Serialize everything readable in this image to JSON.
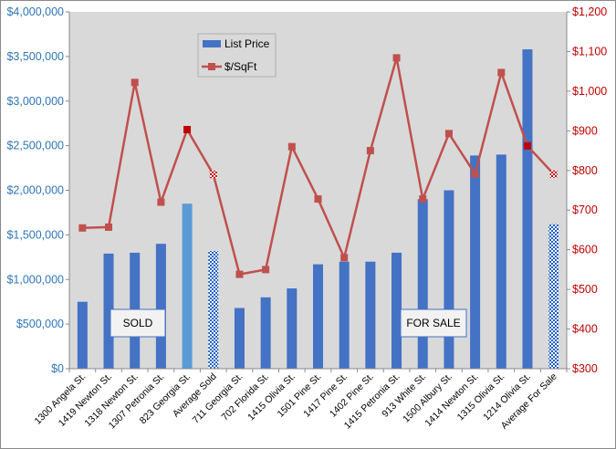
{
  "chart_data": {
    "type": "bar",
    "categories": [
      "1300 Angela St.",
      "1419 Newton St.",
      "1318 Newton St.",
      "1307 Petronia St.",
      "823 Georgia St.",
      "Average Sold",
      "711 Georgia St.",
      "702 Florida St.",
      "1415 Olivia St.",
      "1501 Pine St.",
      "1417 Pine St.",
      "1402 Pine St.",
      "1415 Petronia St.",
      "913 White St.",
      "1500 Albury St.",
      "1414 Newton St.",
      "1315 Olivia St.",
      "1214 Olivia St.",
      "Average For Sale"
    ],
    "series": [
      {
        "name": "List Price",
        "chart": "bar",
        "axis": "left",
        "values": [
          750000,
          1290000,
          1300000,
          1400000,
          1850000,
          1320000,
          680000,
          800000,
          900000,
          1170000,
          1200000,
          1200000,
          1300000,
          1900000,
          2000000,
          2390000,
          2400000,
          3580000,
          1620000
        ]
      },
      {
        "name": "$/SqFt",
        "chart": "line",
        "axis": "right",
        "values": [
          655,
          657,
          1022,
          720,
          903,
          790,
          538,
          550,
          860,
          728,
          580,
          850,
          1084,
          728,
          893,
          791,
          1047,
          862,
          791
        ]
      }
    ],
    "left_axis": {
      "min": 0,
      "max": 4000000,
      "step": 500000,
      "tick_labels": [
        "$0",
        "$500,000",
        "$1,000,000",
        "$1,500,000",
        "$2,000,000",
        "$2,500,000",
        "$3,000,000",
        "$3,500,000",
        "$4,000,000"
      ]
    },
    "right_axis": {
      "min": 300,
      "max": 1200,
      "step": 100,
      "tick_labels": [
        "$300",
        "$400",
        "$500",
        "$600",
        "$700",
        "$800",
        "$900",
        "$1,000",
        "$1,100",
        "$1,200"
      ]
    },
    "highlighted_bars": [
      4
    ],
    "average_bars": [
      5,
      18
    ],
    "highlighted_points": [
      4,
      17
    ],
    "annotations": [
      "SOLD",
      "FOR SALE"
    ],
    "legend": {
      "position": "top-center"
    },
    "grid": false,
    "colors": {
      "plot_background": "#d9d9d9",
      "bar": "#4472c4",
      "bar_highlight": "#5b9bd5",
      "line": "#c0504d",
      "marker": "#c0504d",
      "marker_highlight": "#c00000",
      "left_axis_text": "#2e75b6",
      "right_axis_text": "#c00000"
    }
  }
}
